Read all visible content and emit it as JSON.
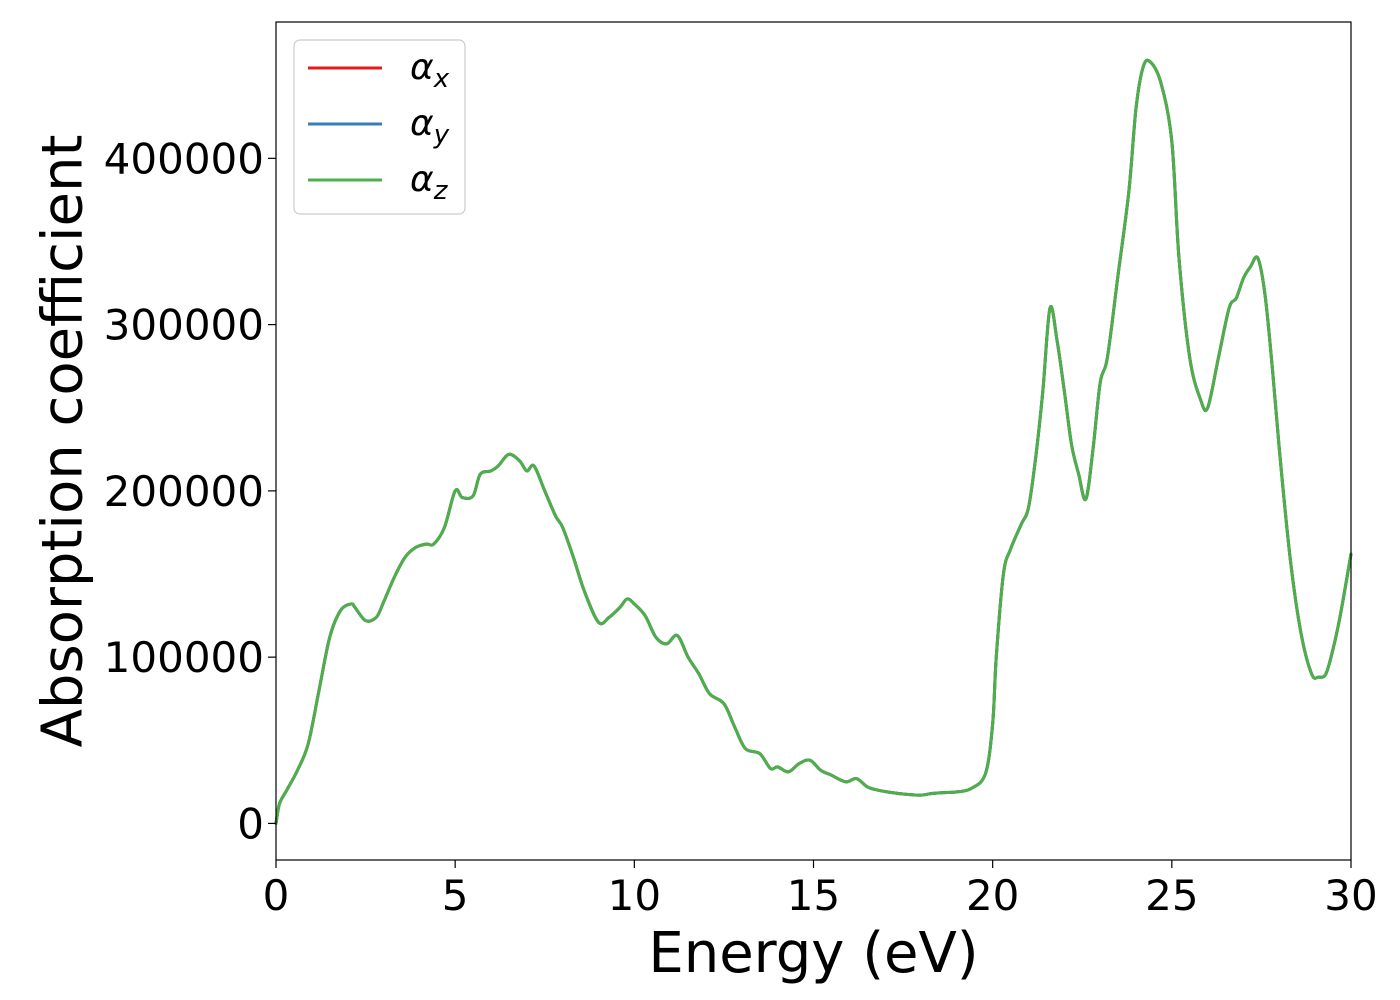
{
  "chart_data": {
    "type": "line",
    "title": "",
    "xlabel": "Energy (eV)",
    "ylabel": "Absorption coefficient",
    "xlim": [
      0,
      30
    ],
    "ylim": [
      -22000,
      482000
    ],
    "xticks": [
      0,
      5,
      10,
      15,
      20,
      25,
      30
    ],
    "xtick_labels": [
      "0",
      "5",
      "10",
      "15",
      "20",
      "25",
      "30"
    ],
    "yticks": [
      0,
      100000,
      200000,
      300000,
      400000
    ],
    "ytick_labels": [
      "0",
      "100000",
      "200000",
      "300000",
      "400000"
    ],
    "grid": false,
    "legend_position": "top-left",
    "colors": {
      "alpha_x": "#e41a1c",
      "alpha_y": "#377eb8",
      "alpha_z": "#4daf4a"
    },
    "series": [
      {
        "name": "α_x",
        "symbol": "α",
        "subscript": "x",
        "color": "#e41a1c",
        "x": [
          0,
          0.1,
          0.3,
          0.6,
          0.9,
          1.2,
          1.5,
          1.8,
          2.1,
          2.2,
          2.5,
          2.8,
          3.0,
          3.3,
          3.6,
          3.9,
          4.2,
          4.4,
          4.7,
          5.0,
          5.2,
          5.5,
          5.7,
          6.0,
          6.2,
          6.5,
          6.8,
          7.0,
          7.2,
          7.5,
          7.8,
          8.0,
          8.3,
          8.6,
          9.0,
          9.3,
          9.6,
          9.8,
          10.0,
          10.3,
          10.6,
          10.9,
          11.2,
          11.5,
          11.8,
          12.1,
          12.5,
          12.8,
          13.1,
          13.5,
          13.8,
          14.0,
          14.3,
          14.6,
          14.9,
          15.2,
          15.5,
          15.9,
          16.2,
          16.5,
          16.8,
          17.2,
          17.6,
          18.0,
          18.3,
          18.6,
          19.0,
          19.4,
          19.8,
          20.0,
          20.1,
          20.3,
          20.5,
          20.8,
          21.0,
          21.2,
          21.4,
          21.6,
          21.8,
          22.0,
          22.2,
          22.4,
          22.6,
          22.8,
          23.0,
          23.2,
          23.5,
          23.8,
          24.0,
          24.2,
          24.4,
          24.7,
          25.0,
          25.2,
          25.5,
          25.8,
          26.0,
          26.3,
          26.6,
          26.8,
          27.0,
          27.2,
          27.4,
          27.6,
          27.8,
          28.0,
          28.3,
          28.6,
          28.9,
          29.1,
          29.3,
          29.5,
          29.7,
          30.0
        ],
        "values": [
          0,
          12000,
          20000,
          32000,
          48000,
          80000,
          112000,
          128000,
          132000,
          130000,
          122000,
          124000,
          133000,
          148000,
          160000,
          166000,
          168000,
          168000,
          178000,
          200000,
          196000,
          197000,
          210000,
          212000,
          215000,
          222000,
          218000,
          212000,
          215000,
          200000,
          185000,
          178000,
          160000,
          140000,
          121000,
          124000,
          130000,
          135000,
          132000,
          125000,
          112000,
          108000,
          113000,
          100000,
          90000,
          78000,
          72000,
          58000,
          45000,
          42000,
          33000,
          34000,
          31000,
          36000,
          38000,
          32000,
          29000,
          25000,
          27000,
          22000,
          20000,
          18500,
          17500,
          17000,
          18000,
          18500,
          19000,
          21000,
          30000,
          60000,
          100000,
          150000,
          165000,
          180000,
          190000,
          220000,
          260000,
          310000,
          290000,
          260000,
          228000,
          210000,
          195000,
          225000,
          265000,
          280000,
          330000,
          380000,
          430000,
          455000,
          458000,
          445000,
          410000,
          340000,
          280000,
          255000,
          250000,
          280000,
          310000,
          316000,
          328000,
          335000,
          340000,
          318000,
          275000,
          225000,
          160000,
          115000,
          90000,
          88000,
          90000,
          105000,
          125000,
          162000
        ]
      },
      {
        "name": "α_y",
        "symbol": "α",
        "subscript": "y",
        "color": "#377eb8",
        "x": [
          0,
          0.1,
          0.3,
          0.6,
          0.9,
          1.2,
          1.5,
          1.8,
          2.1,
          2.2,
          2.5,
          2.8,
          3.0,
          3.3,
          3.6,
          3.9,
          4.2,
          4.4,
          4.7,
          5.0,
          5.2,
          5.5,
          5.7,
          6.0,
          6.2,
          6.5,
          6.8,
          7.0,
          7.2,
          7.5,
          7.8,
          8.0,
          8.3,
          8.6,
          9.0,
          9.3,
          9.6,
          9.8,
          10.0,
          10.3,
          10.6,
          10.9,
          11.2,
          11.5,
          11.8,
          12.1,
          12.5,
          12.8,
          13.1,
          13.5,
          13.8,
          14.0,
          14.3,
          14.6,
          14.9,
          15.2,
          15.5,
          15.9,
          16.2,
          16.5,
          16.8,
          17.2,
          17.6,
          18.0,
          18.3,
          18.6,
          19.0,
          19.4,
          19.8,
          20.0,
          20.1,
          20.3,
          20.5,
          20.8,
          21.0,
          21.2,
          21.4,
          21.6,
          21.8,
          22.0,
          22.2,
          22.4,
          22.6,
          22.8,
          23.0,
          23.2,
          23.5,
          23.8,
          24.0,
          24.2,
          24.4,
          24.7,
          25.0,
          25.2,
          25.5,
          25.8,
          26.0,
          26.3,
          26.6,
          26.8,
          27.0,
          27.2,
          27.4,
          27.6,
          27.8,
          28.0,
          28.3,
          28.6,
          28.9,
          29.1,
          29.3,
          29.5,
          29.7,
          30.0
        ],
        "values": [
          0,
          12000,
          20000,
          32000,
          48000,
          80000,
          112000,
          128000,
          132000,
          130000,
          122000,
          124000,
          133000,
          148000,
          160000,
          166000,
          168000,
          168000,
          178000,
          200000,
          196000,
          197000,
          210000,
          212000,
          215000,
          222000,
          218000,
          212000,
          215000,
          200000,
          185000,
          178000,
          160000,
          140000,
          121000,
          124000,
          130000,
          135000,
          132000,
          125000,
          112000,
          108000,
          113000,
          100000,
          90000,
          78000,
          72000,
          58000,
          45000,
          42000,
          33000,
          34000,
          31000,
          36000,
          38000,
          32000,
          29000,
          25000,
          27000,
          22000,
          20000,
          18500,
          17500,
          17000,
          18000,
          18500,
          19000,
          21000,
          30000,
          60000,
          100000,
          150000,
          165000,
          180000,
          190000,
          220000,
          260000,
          310000,
          290000,
          260000,
          228000,
          210000,
          195000,
          225000,
          265000,
          280000,
          330000,
          380000,
          430000,
          455000,
          458000,
          445000,
          410000,
          340000,
          280000,
          255000,
          250000,
          280000,
          310000,
          316000,
          328000,
          335000,
          340000,
          318000,
          275000,
          225000,
          160000,
          115000,
          90000,
          88000,
          90000,
          105000,
          125000,
          162000
        ]
      },
      {
        "name": "α_z",
        "symbol": "α",
        "subscript": "z",
        "color": "#4daf4a",
        "x": [
          0,
          0.1,
          0.3,
          0.6,
          0.9,
          1.2,
          1.5,
          1.8,
          2.1,
          2.2,
          2.5,
          2.8,
          3.0,
          3.3,
          3.6,
          3.9,
          4.2,
          4.4,
          4.7,
          5.0,
          5.2,
          5.5,
          5.7,
          6.0,
          6.2,
          6.5,
          6.8,
          7.0,
          7.2,
          7.5,
          7.8,
          8.0,
          8.3,
          8.6,
          9.0,
          9.3,
          9.6,
          9.8,
          10.0,
          10.3,
          10.6,
          10.9,
          11.2,
          11.5,
          11.8,
          12.1,
          12.5,
          12.8,
          13.1,
          13.5,
          13.8,
          14.0,
          14.3,
          14.6,
          14.9,
          15.2,
          15.5,
          15.9,
          16.2,
          16.5,
          16.8,
          17.2,
          17.6,
          18.0,
          18.3,
          18.6,
          19.0,
          19.4,
          19.8,
          20.0,
          20.1,
          20.3,
          20.5,
          20.8,
          21.0,
          21.2,
          21.4,
          21.6,
          21.8,
          22.0,
          22.2,
          22.4,
          22.6,
          22.8,
          23.0,
          23.2,
          23.5,
          23.8,
          24.0,
          24.2,
          24.4,
          24.7,
          25.0,
          25.2,
          25.5,
          25.8,
          26.0,
          26.3,
          26.6,
          26.8,
          27.0,
          27.2,
          27.4,
          27.6,
          27.8,
          28.0,
          28.3,
          28.6,
          28.9,
          29.1,
          29.3,
          29.5,
          29.7,
          30.0
        ],
        "values": [
          0,
          12000,
          20000,
          32000,
          48000,
          80000,
          112000,
          128000,
          132000,
          130000,
          122000,
          124000,
          133000,
          148000,
          160000,
          166000,
          168000,
          168000,
          178000,
          200000,
          196000,
          197000,
          210000,
          212000,
          215000,
          222000,
          218000,
          212000,
          215000,
          200000,
          185000,
          178000,
          160000,
          140000,
          121000,
          124000,
          130000,
          135000,
          132000,
          125000,
          112000,
          108000,
          113000,
          100000,
          90000,
          78000,
          72000,
          58000,
          45000,
          42000,
          33000,
          34000,
          31000,
          36000,
          38000,
          32000,
          29000,
          25000,
          27000,
          22000,
          20000,
          18500,
          17500,
          17000,
          18000,
          18500,
          19000,
          21000,
          30000,
          60000,
          100000,
          150000,
          165000,
          180000,
          190000,
          220000,
          260000,
          310000,
          290000,
          260000,
          228000,
          210000,
          195000,
          225000,
          265000,
          280000,
          330000,
          380000,
          430000,
          455000,
          458000,
          445000,
          410000,
          340000,
          280000,
          255000,
          250000,
          280000,
          310000,
          316000,
          328000,
          335000,
          340000,
          318000,
          275000,
          225000,
          160000,
          115000,
          90000,
          88000,
          90000,
          105000,
          125000,
          162000
        ]
      }
    ]
  }
}
